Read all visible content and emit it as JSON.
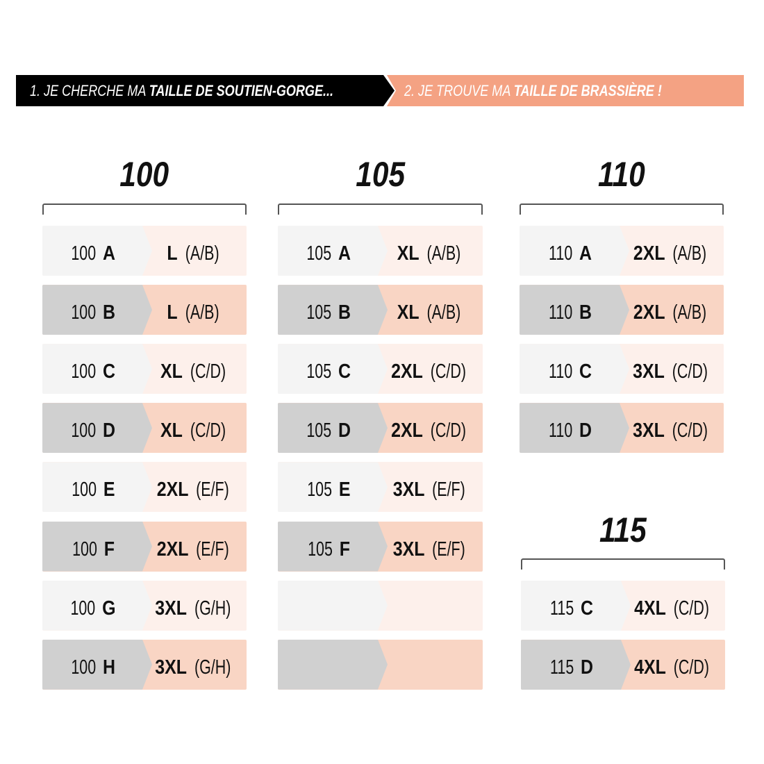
{
  "banner": {
    "step1_prefix": "1. JE CHERCHE MA ",
    "step1_bold": "TAILLE DE SOUTIEN-GORGE...",
    "step2_prefix": "2. JE TROUVE MA ",
    "step2_bold": "TAILLE DE BRASSIÈRE  !"
  },
  "colors": {
    "dark_banner": "#000000",
    "accent": "#f4a283",
    "light_left": "#f4f4f4",
    "light_right": "#fdf0eb",
    "dark_left": "#d0d0d0",
    "dark_right": "#f9d5c4"
  },
  "groups": [
    {
      "header": "100",
      "rows": [
        {
          "band": "100",
          "cup": "A",
          "size": "L",
          "cups": "(A/B)"
        },
        {
          "band": "100",
          "cup": "B",
          "size": "L",
          "cups": "(A/B)"
        },
        {
          "band": "100",
          "cup": "C",
          "size": "XL",
          "cups": "(C/D)"
        },
        {
          "band": "100",
          "cup": "D",
          "size": "XL",
          "cups": "(C/D)"
        },
        {
          "band": "100",
          "cup": "E",
          "size": "2XL",
          "cups": "(E/F)"
        },
        {
          "band": "100",
          "cup": "F",
          "size": "2XL",
          "cups": "(E/F)"
        },
        {
          "band": "100",
          "cup": "G",
          "size": "3XL",
          "cups": "(G/H)"
        },
        {
          "band": "100",
          "cup": "H",
          "size": "3XL",
          "cups": "(G/H)"
        }
      ]
    },
    {
      "header": "105",
      "rows": [
        {
          "band": "105",
          "cup": "A",
          "size": "XL",
          "cups": "(A/B)"
        },
        {
          "band": "105",
          "cup": "B",
          "size": "XL",
          "cups": "(A/B)"
        },
        {
          "band": "105",
          "cup": "C",
          "size": "2XL",
          "cups": "(C/D)"
        },
        {
          "band": "105",
          "cup": "D",
          "size": "2XL",
          "cups": "(C/D)"
        },
        {
          "band": "105",
          "cup": "E",
          "size": "3XL",
          "cups": "(E/F)"
        },
        {
          "band": "105",
          "cup": "F",
          "size": "3XL",
          "cups": "(E/F)"
        },
        {
          "band": "",
          "cup": "",
          "size": "",
          "cups": ""
        },
        {
          "band": "",
          "cup": "",
          "size": "",
          "cups": ""
        }
      ]
    },
    {
      "header": "110",
      "rows": [
        {
          "band": "110",
          "cup": "A",
          "size": "2XL",
          "cups": "(A/B)"
        },
        {
          "band": "110",
          "cup": "B",
          "size": "2XL",
          "cups": "(A/B)"
        },
        {
          "band": "110",
          "cup": "C",
          "size": "3XL",
          "cups": "(C/D)"
        },
        {
          "band": "110",
          "cup": "D",
          "size": "3XL",
          "cups": "(C/D)"
        }
      ]
    },
    {
      "header": "115",
      "rows": [
        {
          "band": "115",
          "cup": "C",
          "size": "4XL",
          "cups": "(C/D)"
        },
        {
          "band": "115",
          "cup": "D",
          "size": "4XL",
          "cups": "(C/D)"
        }
      ]
    }
  ]
}
